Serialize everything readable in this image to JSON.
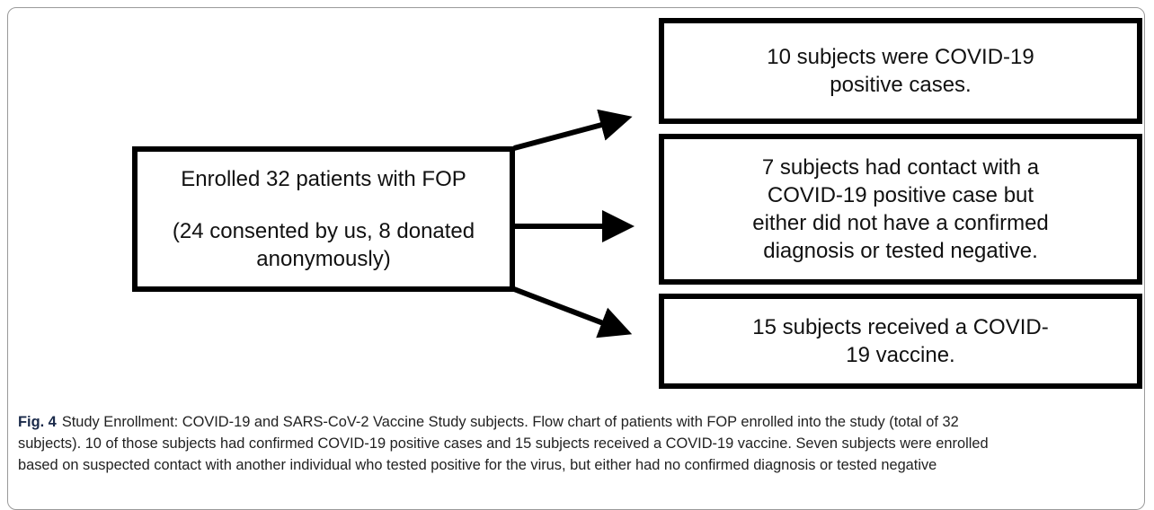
{
  "nodes": [
    {
      "lines": [
        "Enrolled 32 patients with FOP",
        "(24 consented by us, 8 donated",
        "anonymously)"
      ]
    },
    {
      "lines": [
        "10 subjects were COVID-19",
        "positive cases."
      ]
    },
    {
      "lines": [
        "7 subjects had contact with a",
        "COVID-19 positive case but",
        "either did not have a confirmed",
        "diagnosis or tested negative."
      ]
    },
    {
      "lines": [
        "15 subjects received a COVID-",
        "19 vaccine."
      ]
    }
  ],
  "caption": {
    "label": "Fig. 4",
    "lines": [
      "Study Enrollment: COVID-19 and SARS-CoV-2 Vaccine Study subjects. Flow chart of patients with FOP enrolled into the study (total of 32",
      "subjects). 10 of those subjects had confirmed COVID-19 positive cases and 15 subjects received a COVID-19 vaccine. Seven subjects were enrolled",
      "based on suspected contact with another individual who tested positive for the virus, but either had no confirmed diagnosis or tested negative"
    ]
  }
}
